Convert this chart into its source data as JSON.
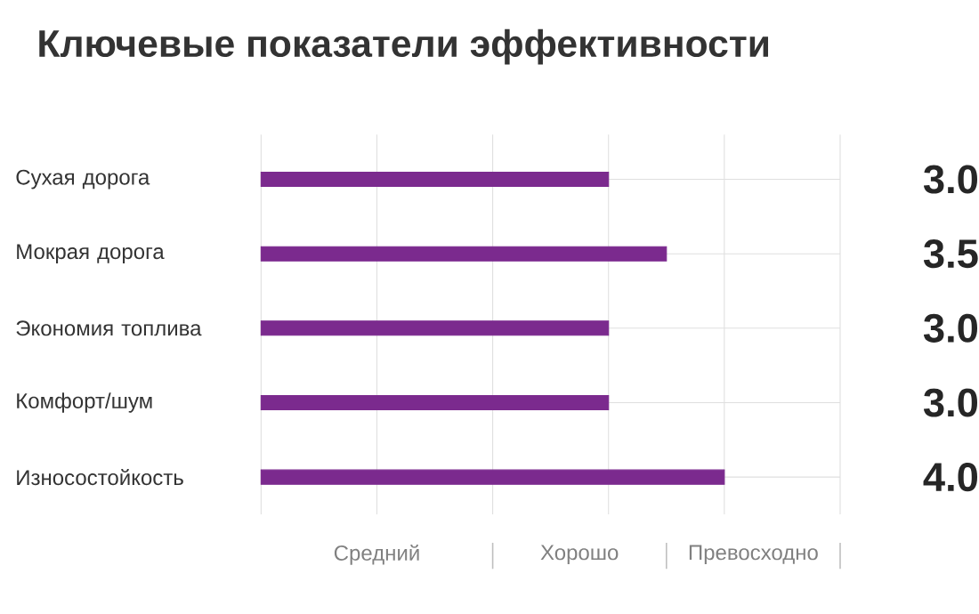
{
  "chart_data": {
    "type": "bar",
    "orientation": "horizontal",
    "title": "Ключевые показатели эффективности",
    "categories": [
      "Сухая дорога",
      "Мокрая дорога",
      "Экономия топлива",
      "Комфорт/шум",
      "Износостойкость"
    ],
    "values": [
      3.0,
      3.5,
      3.0,
      3.0,
      4.0
    ],
    "color": "#7b2a8e",
    "value_labels": [
      "3.0",
      "3.5",
      "3.0",
      "3.0",
      "4.0"
    ],
    "xlim": [
      0,
      5
    ],
    "tick_labels": "y",
    "annotations": [
      "Средний",
      "Хорошо",
      "Превосходно"
    ],
    "grid": true
  }
}
